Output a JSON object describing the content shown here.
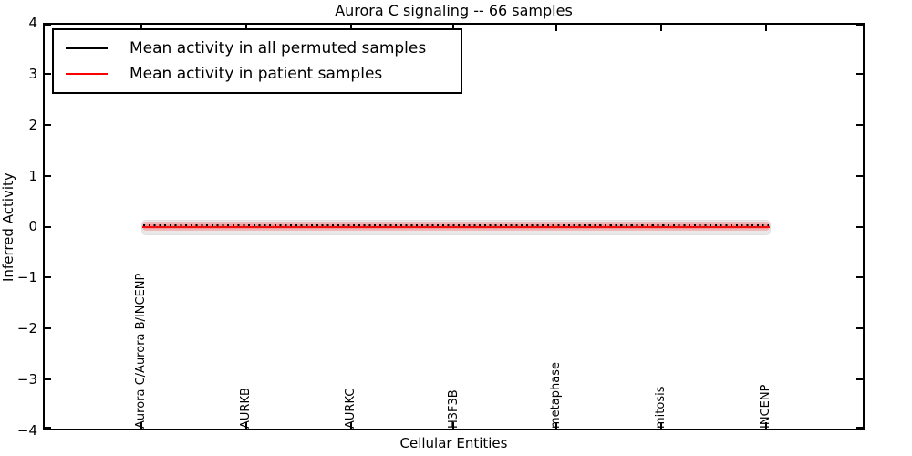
{
  "figure": {
    "title": "Aurora C signaling -- 66 samples",
    "xlabel": "Cellular Entities",
    "ylabel": "Inferred Activity"
  },
  "legend": {
    "items": [
      {
        "label": "Mean activity in all permuted samples",
        "color": "#000000"
      },
      {
        "label": "Mean activity in patient samples",
        "color": "#ff0000"
      }
    ]
  },
  "axes": {
    "y_tick_labels": [
      "4",
      "3",
      "2",
      "1",
      "0",
      "−1",
      "−2",
      "−3",
      "−4"
    ],
    "x_tick_labels": [
      "Aurora C/Aurora B/INCENP",
      "AURKB",
      "AURKC",
      "H3F3B",
      "metaphase",
      "mitosis",
      "INCENP"
    ]
  },
  "chart_data": {
    "type": "line",
    "title": "Aurora C signaling -- 66 samples",
    "xlabel": "Cellular Entities",
    "ylabel": "Inferred Activity",
    "ylim": [
      -4,
      4
    ],
    "grid": false,
    "legend_position": "upper left",
    "categories": [
      "Aurora C/Aurora B/INCENP",
      "AURKB",
      "AURKC",
      "H3F3B",
      "metaphase",
      "mitosis",
      "INCENP"
    ],
    "series": [
      {
        "name": "Mean activity in all permuted samples",
        "color": "#000000",
        "line_style": "dotted",
        "values": [
          0.02,
          0.02,
          0.02,
          0.02,
          0.02,
          0.02,
          0.02
        ],
        "band_upper": [
          0.12,
          0.1,
          0.1,
          0.1,
          0.1,
          0.1,
          0.13
        ],
        "band_lower": [
          -0.2,
          -0.16,
          -0.15,
          -0.15,
          -0.14,
          -0.15,
          -0.2
        ],
        "band_color": "#e9e9e9"
      },
      {
        "name": "Mean activity in patient samples",
        "color": "#ff0000",
        "line_style": "solid",
        "values": [
          -0.03,
          -0.03,
          -0.03,
          -0.03,
          -0.03,
          -0.03,
          -0.03
        ],
        "band_upper": [
          0.07,
          0.06,
          0.06,
          0.06,
          0.06,
          0.06,
          0.07
        ],
        "band_lower": [
          -0.09,
          -0.08,
          -0.08,
          -0.08,
          -0.08,
          -0.08,
          -0.09
        ],
        "band_color": "#f6b6b6"
      }
    ]
  }
}
